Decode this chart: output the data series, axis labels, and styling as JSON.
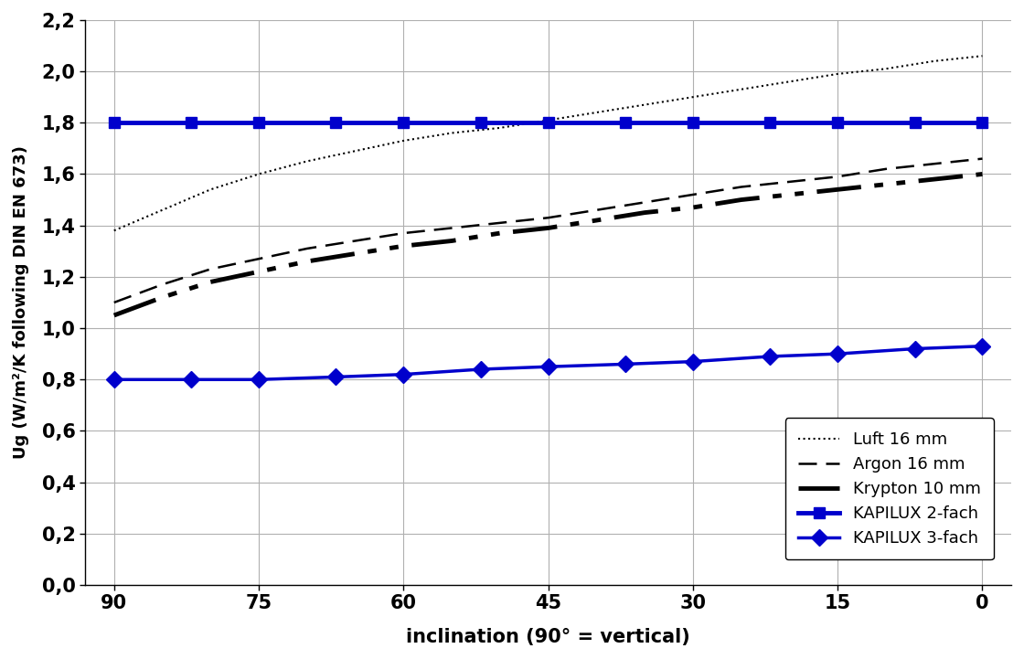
{
  "xlabel": "inclination (90° = vertical)",
  "ylabel": "Ug (W/m²/K following DIN EN 673)",
  "x_ticks": [
    90,
    75,
    60,
    45,
    30,
    15,
    0
  ],
  "x_tick_labels": [
    "90",
    "75",
    "60",
    "45",
    "30",
    "15",
    "0"
  ],
  "ylim": [
    0.0,
    2.2
  ],
  "y_ticks": [
    0.0,
    0.2,
    0.4,
    0.6,
    0.8,
    1.0,
    1.2,
    1.4,
    1.6,
    1.8,
    2.0,
    2.2
  ],
  "luft_x": [
    90,
    85,
    80,
    75,
    70,
    65,
    60,
    55,
    50,
    45,
    40,
    35,
    30,
    25,
    20,
    15,
    10,
    5,
    0
  ],
  "luft_y": [
    1.38,
    1.46,
    1.54,
    1.6,
    1.65,
    1.69,
    1.73,
    1.76,
    1.78,
    1.81,
    1.84,
    1.87,
    1.9,
    1.93,
    1.96,
    1.99,
    2.01,
    2.04,
    2.06
  ],
  "argon_x": [
    90,
    85,
    80,
    75,
    70,
    65,
    60,
    55,
    50,
    45,
    40,
    35,
    30,
    25,
    20,
    15,
    10,
    5,
    0
  ],
  "argon_y": [
    1.1,
    1.17,
    1.23,
    1.27,
    1.31,
    1.34,
    1.37,
    1.39,
    1.41,
    1.43,
    1.46,
    1.49,
    1.52,
    1.55,
    1.57,
    1.59,
    1.62,
    1.64,
    1.66
  ],
  "krypton_x": [
    90,
    85,
    80,
    75,
    70,
    65,
    60,
    55,
    50,
    45,
    40,
    35,
    30,
    25,
    20,
    15,
    10,
    5,
    0
  ],
  "krypton_y": [
    1.05,
    1.12,
    1.18,
    1.22,
    1.26,
    1.29,
    1.32,
    1.34,
    1.37,
    1.39,
    1.42,
    1.45,
    1.47,
    1.5,
    1.52,
    1.54,
    1.56,
    1.58,
    1.6
  ],
  "kapilux2_x": [
    90,
    82,
    75,
    67,
    60,
    52,
    45,
    37,
    30,
    22,
    15,
    7,
    0
  ],
  "kapilux2_y": [
    1.8,
    1.8,
    1.8,
    1.8,
    1.8,
    1.8,
    1.8,
    1.8,
    1.8,
    1.8,
    1.8,
    1.8,
    1.8
  ],
  "kapilux3_x": [
    90,
    82,
    75,
    67,
    60,
    52,
    45,
    37,
    30,
    22,
    15,
    7,
    0
  ],
  "kapilux3_y": [
    0.8,
    0.8,
    0.8,
    0.81,
    0.82,
    0.84,
    0.85,
    0.86,
    0.87,
    0.89,
    0.9,
    0.92,
    0.93
  ],
  "luft_color": "#000000",
  "argon_color": "#000000",
  "krypton_color": "#000000",
  "kapilux2_color": "#0000cc",
  "kapilux3_color": "#0000cc",
  "background_color": "#ffffff",
  "grid_color": "#b0b0b0",
  "legend_labels": [
    "Luft 16 mm",
    "Argon 16 mm",
    "Krypton 10 mm",
    "KAPILUX 2-fach",
    "KAPILUX 3-fach"
  ]
}
